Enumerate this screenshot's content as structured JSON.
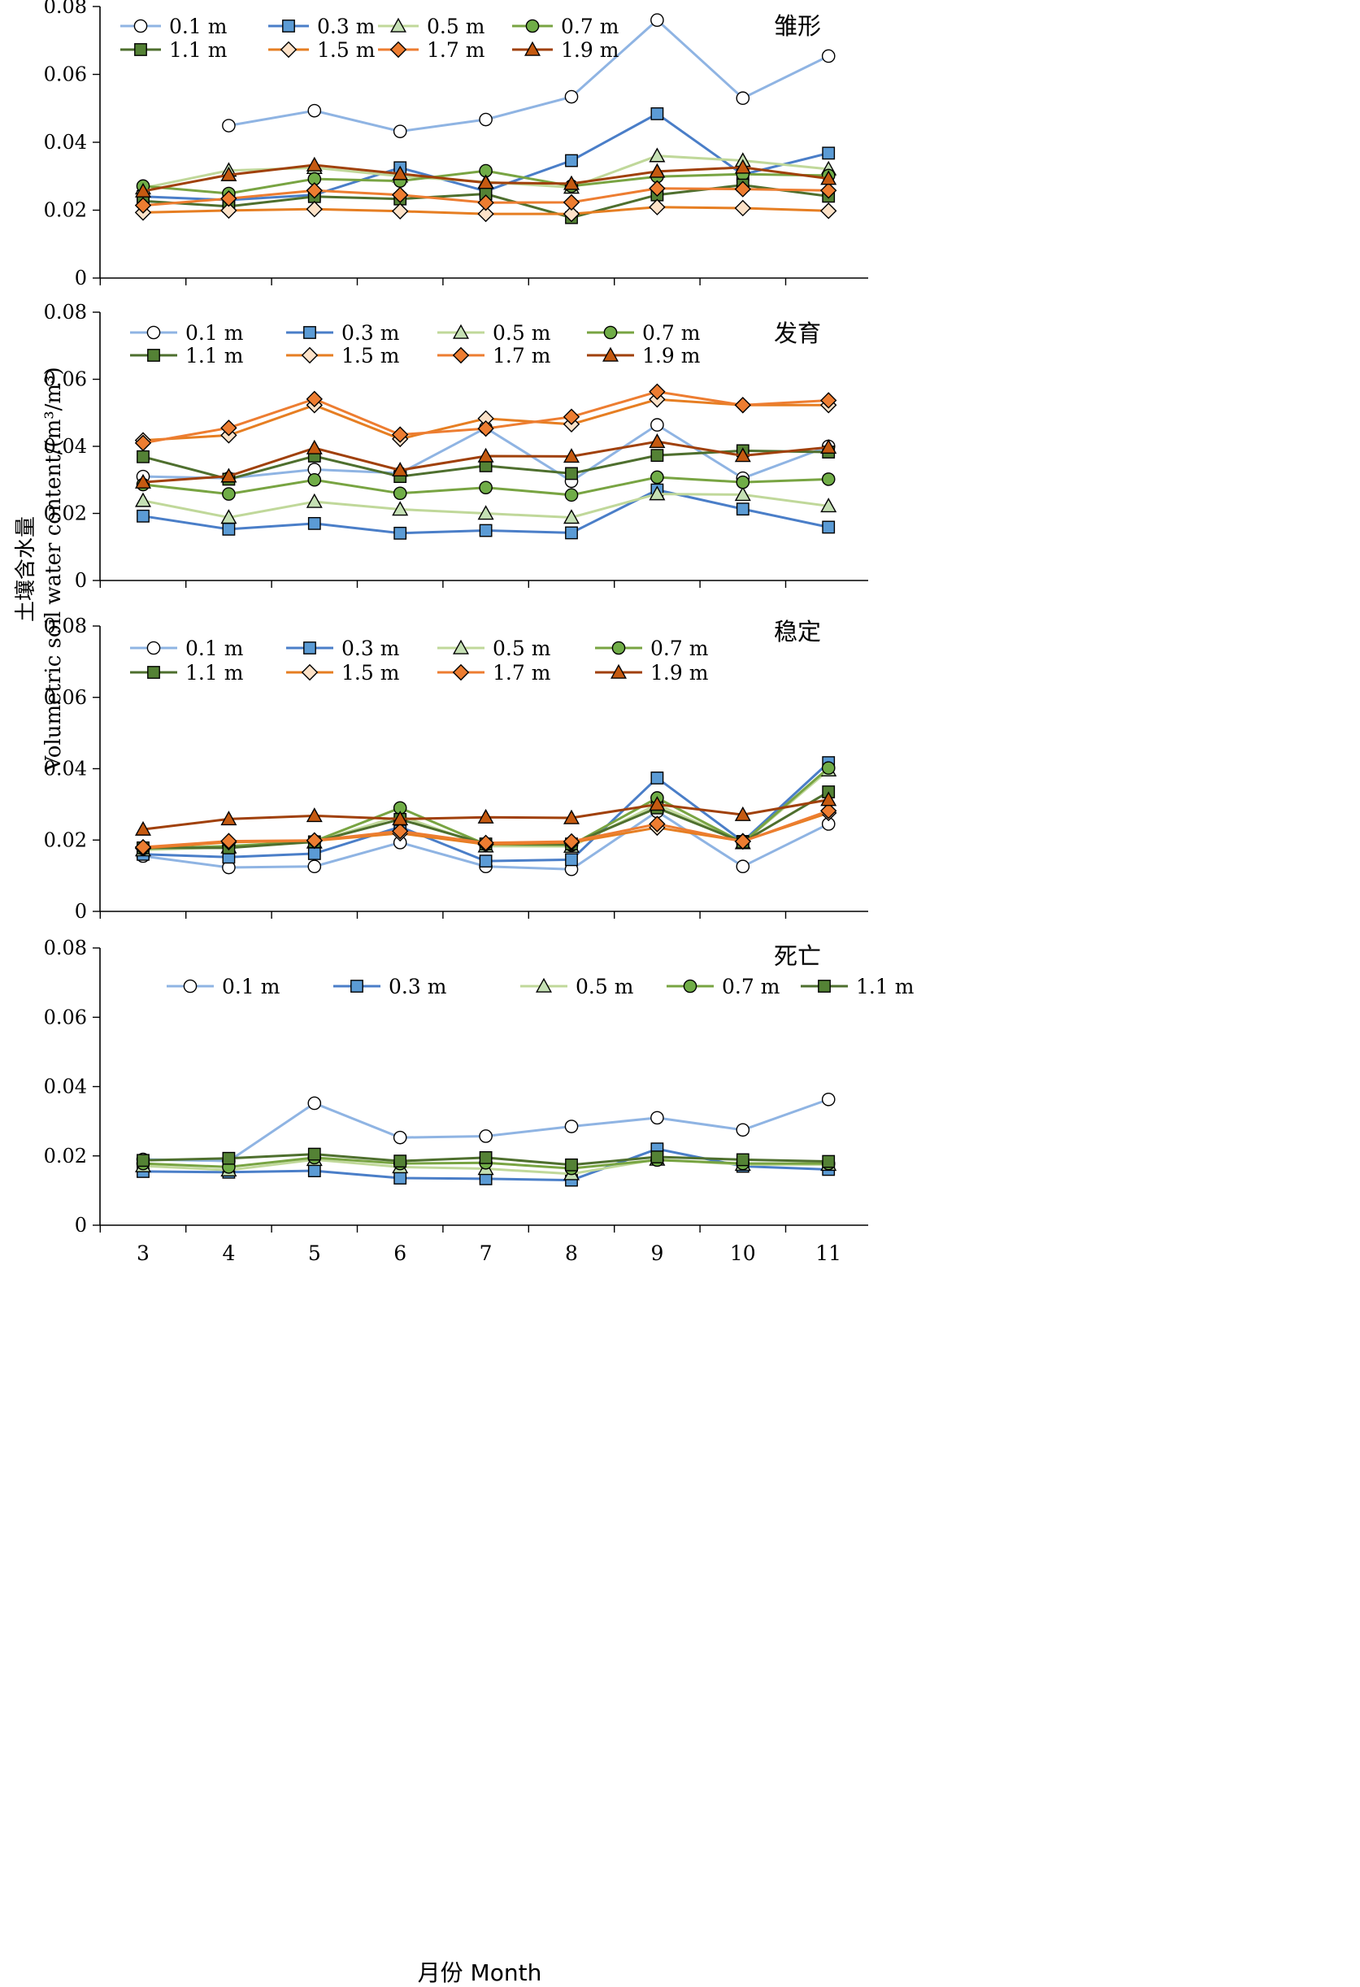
{
  "figure": {
    "ylabel_cn": "土壤含水量",
    "ylabel_en": "Volumetric soil water content/(m³/m³)",
    "xlabel": "月份 Month"
  },
  "series_styles": {
    "0.1 m": {
      "color": "#8fb4e3",
      "fill": "#ffffff",
      "marker": "circle"
    },
    "0.3 m": {
      "color": "#4a7ec8",
      "fill": "#5b9bd5",
      "marker": "square"
    },
    "0.5 m": {
      "color": "#c0d89a",
      "fill": "#c5e0b4",
      "marker": "triangle"
    },
    "0.7 m": {
      "color": "#78a442",
      "fill": "#70ad47",
      "marker": "circle"
    },
    "1.1 m": {
      "color": "#4e6f2e",
      "fill": "#548235",
      "marker": "square"
    },
    "1.5 m": {
      "color": "#e67e22",
      "fill": "#fde2c8",
      "marker": "diamond"
    },
    "1.7 m": {
      "color": "#ed7d31",
      "fill": "#ed7d31",
      "marker": "diamond"
    },
    "1.9 m": {
      "color": "#a0400a",
      "fill": "#c55a11",
      "marker": "triangle"
    }
  },
  "chart_data": [
    {
      "type": "line",
      "title": "雏形",
      "x": [
        3,
        4,
        5,
        6,
        7,
        8,
        9,
        10,
        11
      ],
      "ylim": [
        0,
        0.08
      ],
      "yticks": [
        "0",
        "0.02",
        "0.04",
        "0.06",
        "0.08"
      ],
      "xticks": [
        "3",
        "4",
        "5",
        "6",
        "7",
        "8",
        "9",
        "10",
        "11"
      ],
      "legend_columns": 4,
      "series": [
        {
          "name": "0.1 m",
          "values": [
            null,
            0.0449,
            0.0493,
            0.0432,
            0.0467,
            0.0534,
            0.076,
            0.053,
            0.0654
          ]
        },
        {
          "name": "0.3 m",
          "values": [
            0.024,
            0.023,
            0.0245,
            0.0325,
            0.0256,
            0.0346,
            0.0484,
            0.0305,
            0.0368
          ]
        },
        {
          "name": "0.5 m",
          "values": [
            0.0265,
            0.0317,
            0.0325,
            0.03,
            0.0283,
            0.0267,
            0.036,
            0.0346,
            0.0321
          ]
        },
        {
          "name": "0.7 m",
          "values": [
            0.0271,
            0.0249,
            0.0292,
            0.0286,
            0.0316,
            0.0271,
            0.0299,
            0.0306,
            0.0302
          ]
        },
        {
          "name": "1.1 m",
          "values": [
            0.0227,
            0.0211,
            0.024,
            0.0233,
            0.0248,
            0.0178,
            0.0245,
            0.0274,
            0.0241
          ]
        },
        {
          "name": "1.5 m",
          "values": [
            0.0193,
            0.0199,
            0.0203,
            0.0197,
            0.0189,
            0.0189,
            0.0209,
            0.0206,
            0.0198
          ]
        },
        {
          "name": "1.7 m",
          "values": [
            0.0214,
            0.0234,
            0.0258,
            0.0245,
            0.0222,
            0.0223,
            0.0264,
            0.0262,
            0.0258
          ]
        },
        {
          "name": "1.9 m",
          "values": [
            0.0256,
            0.0304,
            0.0333,
            0.0307,
            0.0281,
            0.0278,
            0.0314,
            0.0326,
            0.0293
          ]
        }
      ]
    },
    {
      "type": "line",
      "title": "发育",
      "x": [
        3,
        4,
        5,
        6,
        7,
        8,
        9,
        10,
        11
      ],
      "ylim": [
        0,
        0.08
      ],
      "yticks": [
        "0",
        "0.02",
        "0.04",
        "0.06",
        "0.08"
      ],
      "xticks": [
        "3",
        "4",
        "5",
        "6",
        "7",
        "8",
        "9",
        "10",
        "11"
      ],
      "legend_columns": 4,
      "series": [
        {
          "name": "0.1 m",
          "values": [
            0.031,
            0.0305,
            0.0331,
            0.032,
            0.0455,
            0.0296,
            0.0464,
            0.0305,
            0.04
          ]
        },
        {
          "name": "0.3 m",
          "values": [
            0.0192,
            0.0153,
            0.017,
            0.0141,
            0.0149,
            0.0142,
            0.027,
            0.0213,
            0.0159
          ]
        },
        {
          "name": "0.5 m",
          "values": [
            0.0238,
            0.0188,
            0.0235,
            0.0212,
            0.02,
            0.0188,
            0.0258,
            0.0256,
            0.0222
          ]
        },
        {
          "name": "0.7 m",
          "values": [
            0.0286,
            0.0258,
            0.03,
            0.026,
            0.0277,
            0.0255,
            0.0308,
            0.0293,
            0.0302
          ]
        },
        {
          "name": "1.1 m",
          "values": [
            0.0369,
            0.0302,
            0.0371,
            0.031,
            0.0342,
            0.0319,
            0.0373,
            0.0387,
            0.0383
          ]
        },
        {
          "name": "1.5 m",
          "values": [
            0.0418,
            0.0433,
            0.0523,
            0.0422,
            0.0483,
            0.0466,
            0.054,
            0.0523,
            0.0523
          ]
        },
        {
          "name": "1.7 m",
          "values": [
            0.041,
            0.0455,
            0.0541,
            0.0435,
            0.0453,
            0.0488,
            0.0563,
            0.0523,
            0.0537
          ]
        },
        {
          "name": "1.9 m",
          "values": [
            0.0293,
            0.0311,
            0.0395,
            0.0329,
            0.0371,
            0.037,
            0.0414,
            0.0372,
            0.0397
          ]
        }
      ]
    },
    {
      "type": "line",
      "title": "稳定",
      "x": [
        3,
        4,
        5,
        6,
        7,
        8,
        9,
        10,
        11
      ],
      "ylim": [
        0,
        0.08
      ],
      "yticks": [
        "0",
        "0.02",
        "0.04",
        "0.06",
        "0.08"
      ],
      "xticks": [
        "3",
        "4",
        "5",
        "6",
        "7",
        "8",
        "9",
        "10",
        "11"
      ],
      "legend_columns": 4,
      "series": [
        {
          "name": "0.1 m",
          "values": [
            0.0155,
            0.0123,
            0.0126,
            0.0193,
            0.0126,
            0.0118,
            0.028,
            0.0126,
            0.0245
          ]
        },
        {
          "name": "0.3 m",
          "values": [
            0.016,
            0.0152,
            0.0162,
            0.0237,
            0.0141,
            0.0145,
            0.0374,
            0.0196,
            0.0417
          ]
        },
        {
          "name": "0.5 m",
          "values": [
            0.0172,
            0.018,
            0.0194,
            0.0268,
            0.0183,
            0.0182,
            0.03,
            0.0192,
            0.0396
          ]
        },
        {
          "name": "0.7 m",
          "values": [
            0.0176,
            0.0183,
            0.0197,
            0.029,
            0.0188,
            0.0186,
            0.0318,
            0.0193,
            0.0402
          ]
        },
        {
          "name": "1.1 m",
          "values": [
            0.0178,
            0.0178,
            0.0195,
            0.0258,
            0.0189,
            0.0189,
            0.029,
            0.0194,
            0.0335
          ]
        },
        {
          "name": "1.5 m",
          "values": [
            0.0177,
            0.0194,
            0.0198,
            0.0219,
            0.0188,
            0.0193,
            0.0235,
            0.0197,
            0.0276
          ]
        },
        {
          "name": "1.7 m",
          "values": [
            0.018,
            0.0197,
            0.0199,
            0.0225,
            0.0192,
            0.0196,
            0.0245,
            0.0196,
            0.0282
          ]
        },
        {
          "name": "1.9 m",
          "values": [
            0.023,
            0.0259,
            0.0268,
            0.0259,
            0.0264,
            0.0262,
            0.03,
            0.0271,
            0.0313
          ]
        }
      ]
    },
    {
      "type": "line",
      "title": "死亡",
      "x": [
        3,
        4,
        5,
        6,
        7,
        8,
        9,
        10,
        11
      ],
      "ylim": [
        0,
        0.08
      ],
      "yticks": [
        "0",
        "0.02",
        "0.04",
        "0.06",
        "0.08"
      ],
      "xticks": [
        "3",
        "4",
        "5",
        "6",
        "7",
        "8",
        "9",
        "10",
        "11"
      ],
      "legend_columns": 5,
      "series": [
        {
          "name": "0.1 m",
          "values": [
            0.019,
            0.0185,
            0.0352,
            0.0253,
            0.0257,
            0.0285,
            0.031,
            0.0275,
            0.0363
          ]
        },
        {
          "name": "0.3 m",
          "values": [
            0.0155,
            0.0153,
            0.0157,
            0.0136,
            0.0134,
            0.013,
            0.022,
            0.017,
            0.0161
          ]
        },
        {
          "name": "0.5 m",
          "values": [
            0.0171,
            0.0159,
            0.0189,
            0.0168,
            0.0163,
            0.0148,
            0.019,
            0.0175,
            0.0175
          ]
        },
        {
          "name": "0.7 m",
          "values": [
            0.0178,
            0.0168,
            0.0195,
            0.0178,
            0.018,
            0.0164,
            0.0188,
            0.0178,
            0.0178
          ]
        },
        {
          "name": "1.1 m",
          "values": [
            0.0187,
            0.0193,
            0.0205,
            0.0185,
            0.0195,
            0.0174,
            0.0197,
            0.0189,
            0.0184
          ]
        }
      ]
    }
  ]
}
